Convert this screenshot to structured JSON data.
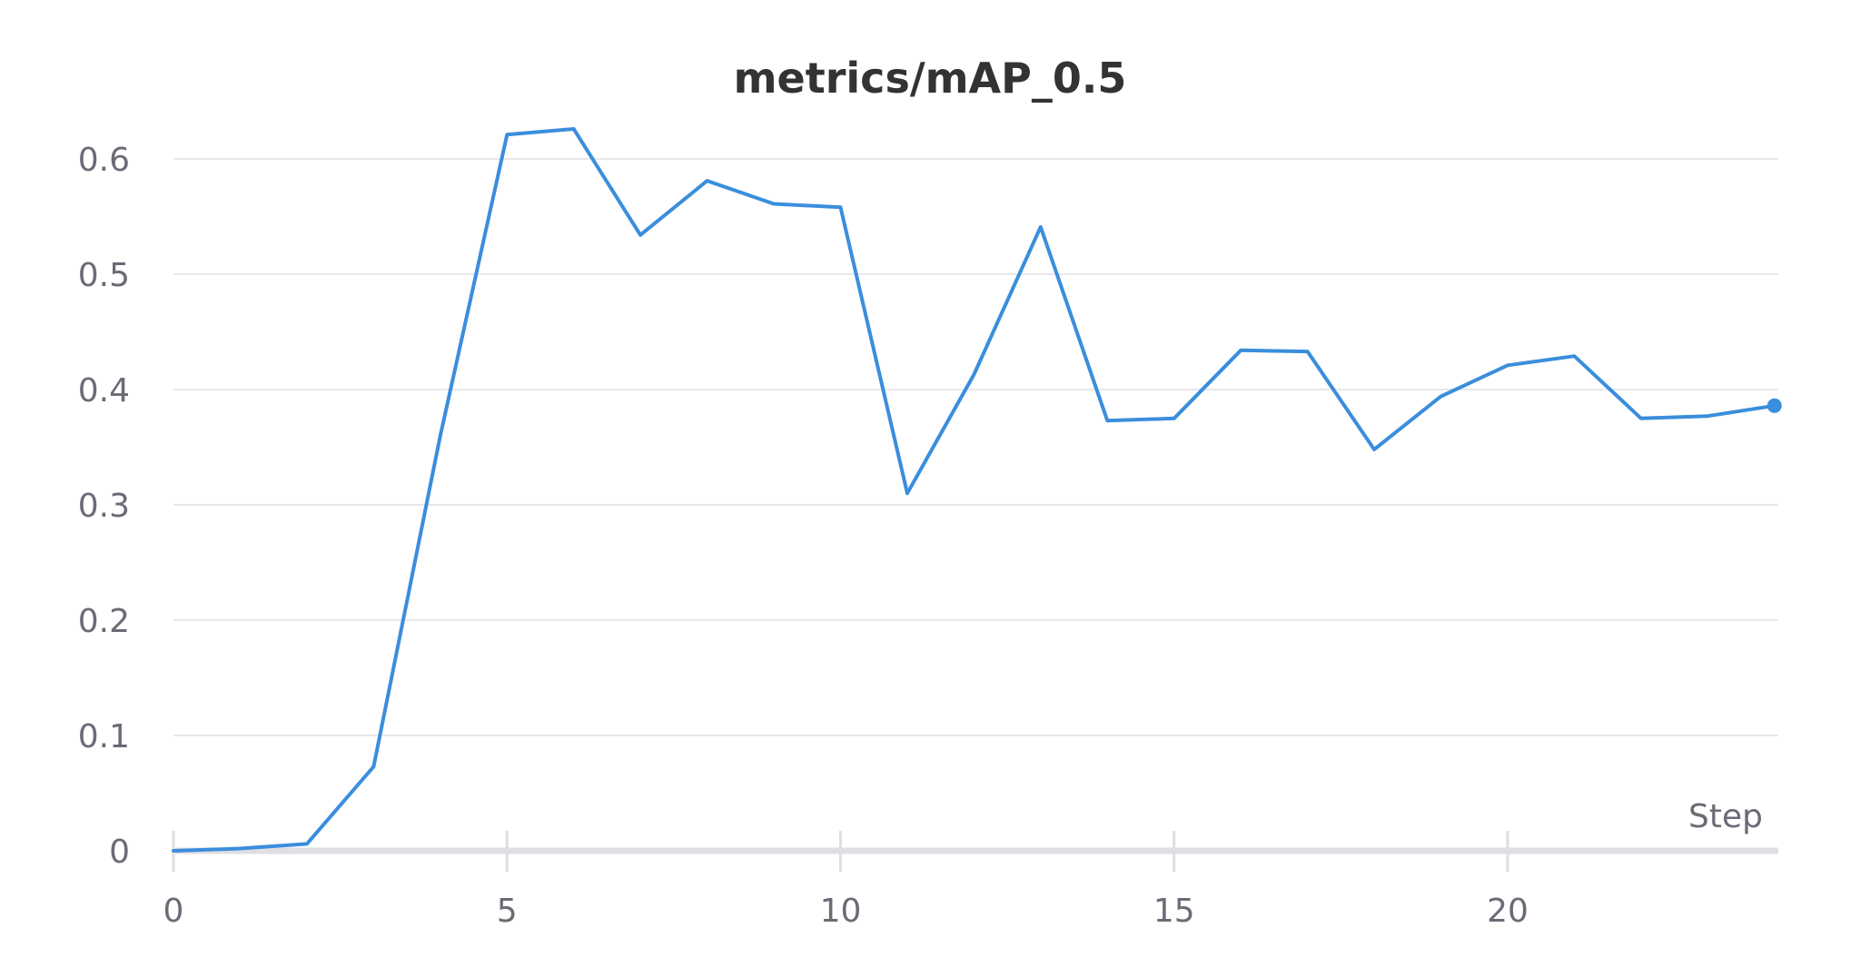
{
  "chart_data": {
    "type": "line",
    "title": "metrics/mAP_0.5",
    "xlabel": "Step",
    "ylabel": "",
    "xlim": [
      0,
      24
    ],
    "ylim": [
      0,
      0.65
    ],
    "x_ticks": [
      0,
      5,
      10,
      15,
      20
    ],
    "y_ticks": [
      0,
      0.1,
      0.2,
      0.3,
      0.4,
      0.5,
      0.6
    ],
    "grid": true,
    "series": [
      {
        "color": "#3a8edc",
        "end_marker": true,
        "x": [
          0,
          1,
          2,
          3,
          4,
          5,
          6,
          7,
          8,
          9,
          10,
          11,
          12,
          13,
          14,
          15,
          16,
          17,
          18,
          19,
          20,
          21,
          22,
          23,
          24
        ],
        "y": [
          0.0,
          0.002,
          0.006,
          0.073,
          0.36,
          0.621,
          0.626,
          0.534,
          0.581,
          0.561,
          0.558,
          0.31,
          0.413,
          0.541,
          0.373,
          0.375,
          0.434,
          0.433,
          0.348,
          0.394,
          0.421,
          0.429,
          0.375,
          0.377,
          0.386
        ]
      }
    ]
  }
}
